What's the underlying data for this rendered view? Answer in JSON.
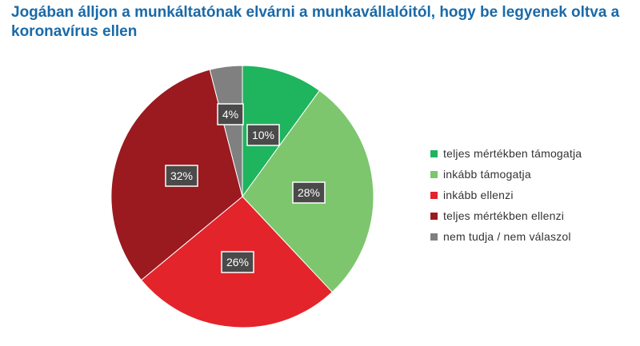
{
  "chart_data": {
    "type": "pie",
    "title": "Jogában álljon a munkáltatónak elvárni a munkavállalóitól, hogy be legyenek oltva a koronavírus ellen",
    "series": [
      {
        "name": "teljes mértékben támogatja",
        "value": 10,
        "label": "10%",
        "color": "#1fb45e"
      },
      {
        "name": "inkább támogatja",
        "value": 28,
        "label": "28%",
        "color": "#7dc66e"
      },
      {
        "name": "inkább ellenzi",
        "value": 26,
        "label": "26%",
        "color": "#e3242b"
      },
      {
        "name": "teljes mértékben ellenzi",
        "value": 32,
        "label": "32%",
        "color": "#9a1a1f"
      },
      {
        "name": "nem tudja / nem válaszol",
        "value": 4,
        "label": "4%",
        "color": "#808080"
      }
    ],
    "legend_position": "right",
    "label_box_color": "#4a4a4a"
  }
}
